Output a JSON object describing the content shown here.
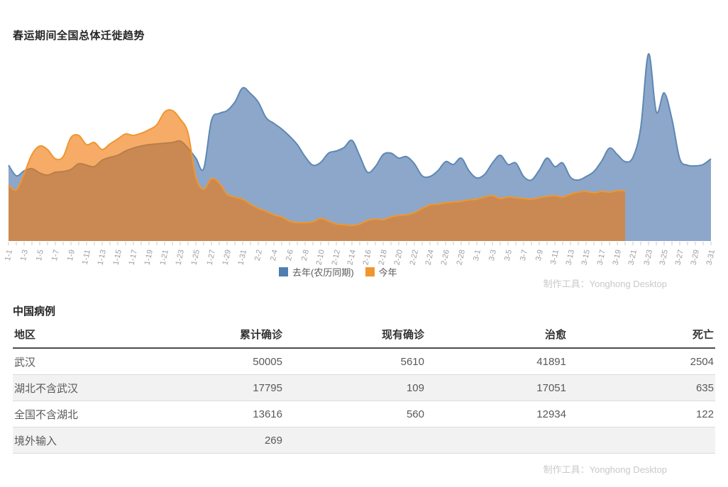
{
  "chart": {
    "title": "春运期间全国总体迁徙趋势",
    "credit": "制作工具：Yonghong Desktop",
    "legend": [
      {
        "key": "last-year",
        "label": "去年(农历同期)",
        "color": "#4e7fae"
      },
      {
        "key": "this-year",
        "label": "今年",
        "color": "#f0962f"
      }
    ]
  },
  "chart_data": {
    "type": "area",
    "title": "春运期间全国总体迁徙趋势",
    "xlabel": "",
    "ylabel": "",
    "grid": false,
    "legend_position": "bottom",
    "x_range": [
      "1-1",
      "3-31"
    ],
    "days": 91,
    "ylim": [
      0,
      280
    ],
    "x_labels": [
      "1-1",
      "1-3",
      "1-5",
      "1-7",
      "1-9",
      "1-11",
      "1-13",
      "1-15",
      "1-17",
      "1-19",
      "1-21",
      "1-23",
      "1-25",
      "1-27",
      "1-29",
      "1-31",
      "2-2",
      "2-4",
      "2-6",
      "2-8",
      "2-10",
      "2-12",
      "2-14",
      "2-16",
      "2-18",
      "2-20",
      "2-22",
      "2-24",
      "2-26",
      "2-28",
      "3-1",
      "3-3",
      "3-5",
      "3-7",
      "3-9",
      "3-11",
      "3-13",
      "3-15",
      "3-17",
      "3-19",
      "3-21",
      "3-23",
      "3-25",
      "3-27",
      "3-29",
      "3-31"
    ],
    "series": [
      {
        "name": "去年(农历同期)",
        "fill": "#8ca7c9",
        "line": "#5e88b4",
        "start": "1-1",
        "end": "3-31",
        "values": [
          107,
          92,
          99,
          102,
          96,
          93,
          97,
          98,
          101,
          109,
          107,
          105,
          114,
          118,
          121,
          127,
          131,
          134,
          136,
          137,
          138,
          139,
          141,
          131,
          117,
          102,
          170,
          180,
          184,
          196,
          216,
          208,
          196,
          174,
          166,
          158,
          148,
          136,
          119,
          107,
          111,
          124,
          127,
          132,
          142,
          120,
          97,
          105,
          122,
          124,
          117,
          119,
          109,
          92,
          91,
          99,
          112,
          108,
          117,
          99,
          89,
          94,
          110,
          121,
          108,
          110,
          91,
          86,
          100,
          117,
          105,
          110,
          90,
          86,
          91,
          98,
          113,
          131,
          122,
          112,
          118,
          160,
          264,
          182,
          209,
          172,
          116,
          107,
          106,
          108,
          116
        ]
      },
      {
        "name": "今年",
        "fill": "rgba(240,120,10,0.62)",
        "line": "#f0962f",
        "start": "1-1",
        "end": "3-20",
        "values": [
          79,
          72,
          95,
          122,
          134,
          129,
          116,
          119,
          146,
          149,
          136,
          139,
          129,
          137,
          144,
          151,
          149,
          152,
          157,
          164,
          182,
          184,
          172,
          152,
          90,
          73,
          88,
          82,
          66,
          62,
          59,
          52,
          46,
          42,
          37,
          34,
          28,
          26,
          26,
          27,
          32,
          28,
          24,
          23,
          22,
          24,
          29,
          31,
          30,
          34,
          36,
          37,
          40,
          46,
          51,
          52,
          54,
          55,
          56,
          58,
          59,
          62,
          64,
          60,
          62,
          61,
          60,
          59,
          61,
          63,
          64,
          62,
          66,
          69,
          70,
          68,
          70,
          69,
          71,
          71
        ]
      }
    ]
  },
  "table": {
    "title": "中国病例",
    "credit": "制作工具：Yonghong Desktop",
    "columns": [
      "地区",
      "累计确诊",
      "现有确诊",
      "治愈",
      "死亡"
    ],
    "rows": [
      {
        "region": "武汉",
        "confirmed_total": "50005",
        "confirmed_current": "5610",
        "cured": "41891",
        "deaths": "2504"
      },
      {
        "region": "湖北不含武汉",
        "confirmed_total": "17795",
        "confirmed_current": "109",
        "cured": "17051",
        "deaths": "635"
      },
      {
        "region": "全国不含湖北",
        "confirmed_total": "13616",
        "confirmed_current": "560",
        "cured": "12934",
        "deaths": "122"
      },
      {
        "region": "境外输入",
        "confirmed_total": "269",
        "confirmed_current": "",
        "cured": "",
        "deaths": ""
      }
    ]
  }
}
